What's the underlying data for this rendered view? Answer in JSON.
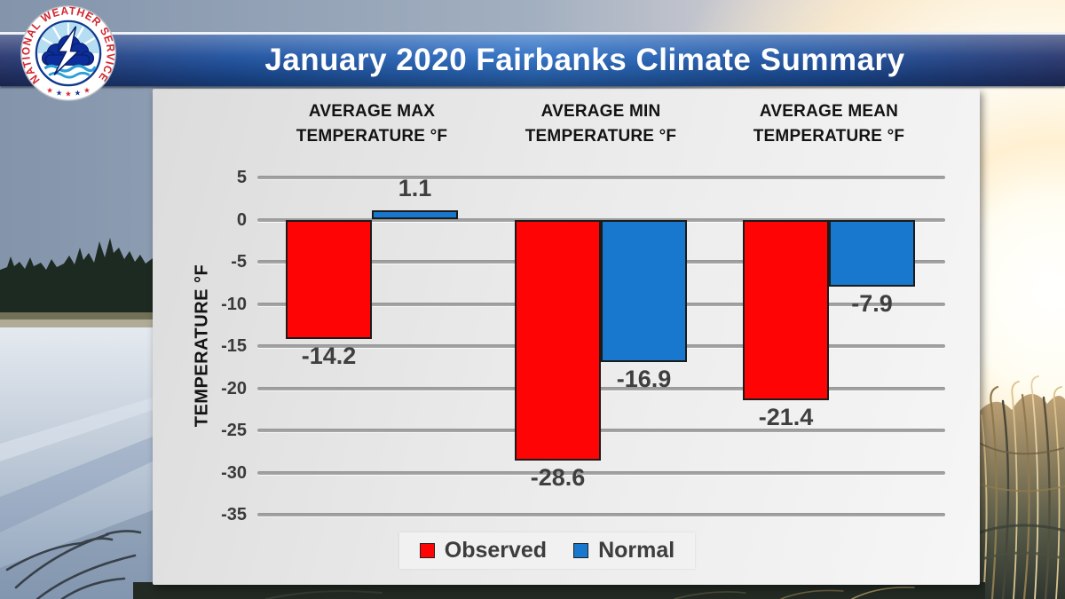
{
  "logo": {
    "ring_text": "NATIONAL WEATHER SERVICE"
  },
  "header": {
    "title": "January 2020 Fairbanks Climate Summary"
  },
  "chart_data": {
    "type": "bar",
    "categories": [
      "AVERAGE MAX TEMPERATURE °F",
      "AVERAGE MIN TEMPERATURE °F",
      "AVERAGE MEAN TEMPERATURE °F"
    ],
    "series": [
      {
        "name": "Observed",
        "color": "#FE0404",
        "values": [
          -14.2,
          -28.6,
          -21.4
        ]
      },
      {
        "name": "Normal",
        "color": "#1778CE",
        "values": [
          1.1,
          -16.9,
          -7.9
        ]
      }
    ],
    "ylabel": "TEMPERATURE °F",
    "yticks": [
      5,
      0,
      -5,
      -10,
      -15,
      -20,
      -25,
      -30,
      -35
    ],
    "ylim": [
      -37,
      7
    ],
    "grid": true,
    "legend_position": "bottom"
  },
  "colors": {
    "banner_blue": "#2D6FC4",
    "panel_gray": "#E9E9E9",
    "observed_red": "#FE0404",
    "normal_blue": "#1778CE",
    "value_label_gray": "#3F3F3F"
  }
}
